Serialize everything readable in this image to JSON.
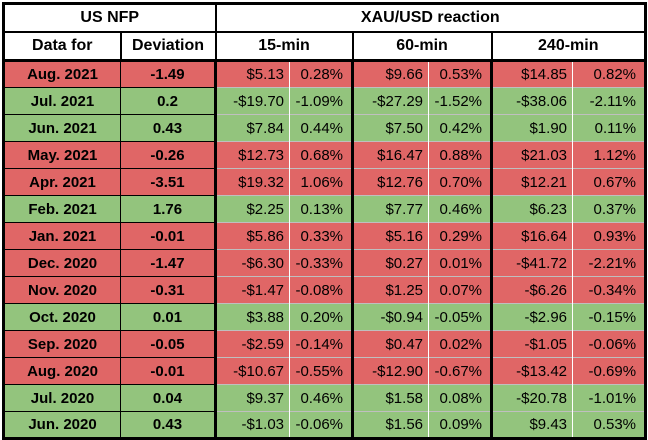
{
  "chart_data": {
    "type": "table",
    "header": {
      "us_nfp": "US NFP",
      "xau_reaction": "XAU/USD reaction",
      "data_for": "Data for",
      "deviation": "Deviation",
      "timeframes": [
        "15-min",
        "60-min",
        "240-min"
      ]
    },
    "rows": [
      {
        "month": "Aug. 2021",
        "deviation": "-1.49",
        "tone": "red",
        "reaction_15min": {
          "price": "$5.13",
          "pct": "0.28%"
        },
        "reaction_60min": {
          "price": "$9.66",
          "pct": "0.53%"
        },
        "reaction_240min": {
          "price": "$14.85",
          "pct": "0.82%"
        }
      },
      {
        "month": "Jul. 2021",
        "deviation": "0.2",
        "tone": "green",
        "reaction_15min": {
          "price": "-$19.70",
          "pct": "-1.09%"
        },
        "reaction_60min": {
          "price": "-$27.29",
          "pct": "-1.52%"
        },
        "reaction_240min": {
          "price": "-$38.06",
          "pct": "-2.11%"
        }
      },
      {
        "month": "Jun. 2021",
        "deviation": "0.43",
        "tone": "green",
        "reaction_15min": {
          "price": "$7.84",
          "pct": "0.44%"
        },
        "reaction_60min": {
          "price": "$7.50",
          "pct": "0.42%"
        },
        "reaction_240min": {
          "price": "$1.90",
          "pct": "0.11%"
        }
      },
      {
        "month": "May. 2021",
        "deviation": "-0.26",
        "tone": "red",
        "reaction_15min": {
          "price": "$12.73",
          "pct": "0.68%"
        },
        "reaction_60min": {
          "price": "$16.47",
          "pct": "0.88%"
        },
        "reaction_240min": {
          "price": "$21.03",
          "pct": "1.12%"
        }
      },
      {
        "month": "Apr. 2021",
        "deviation": "-3.51",
        "tone": "red",
        "reaction_15min": {
          "price": "$19.32",
          "pct": "1.06%"
        },
        "reaction_60min": {
          "price": "$12.76",
          "pct": "0.70%"
        },
        "reaction_240min": {
          "price": "$12.21",
          "pct": "0.67%"
        }
      },
      {
        "month": "Feb. 2021",
        "deviation": "1.76",
        "tone": "green",
        "reaction_15min": {
          "price": "$2.25",
          "pct": "0.13%"
        },
        "reaction_60min": {
          "price": "$7.77",
          "pct": "0.46%"
        },
        "reaction_240min": {
          "price": "$6.23",
          "pct": "0.37%"
        }
      },
      {
        "month": "Jan. 2021",
        "deviation": "-0.01",
        "tone": "red",
        "reaction_15min": {
          "price": "$5.86",
          "pct": "0.33%"
        },
        "reaction_60min": {
          "price": "$5.16",
          "pct": "0.29%"
        },
        "reaction_240min": {
          "price": "$16.64",
          "pct": "0.93%"
        }
      },
      {
        "month": "Dec. 2020",
        "deviation": "-1.47",
        "tone": "red",
        "reaction_15min": {
          "price": "-$6.30",
          "pct": "-0.33%"
        },
        "reaction_60min": {
          "price": "$0.27",
          "pct": "0.01%"
        },
        "reaction_240min": {
          "price": "-$41.72",
          "pct": "-2.21%"
        }
      },
      {
        "month": "Nov. 2020",
        "deviation": "-0.31",
        "tone": "red",
        "reaction_15min": {
          "price": "-$1.47",
          "pct": "-0.08%"
        },
        "reaction_60min": {
          "price": "$1.25",
          "pct": "0.07%"
        },
        "reaction_240min": {
          "price": "-$6.26",
          "pct": "-0.34%"
        }
      },
      {
        "month": "Oct. 2020",
        "deviation": "0.01",
        "tone": "green",
        "reaction_15min": {
          "price": "$3.88",
          "pct": "0.20%"
        },
        "reaction_60min": {
          "price": "-$0.94",
          "pct": "-0.05%"
        },
        "reaction_240min": {
          "price": "-$2.96",
          "pct": "-0.15%"
        }
      },
      {
        "month": "Sep. 2020",
        "deviation": "-0.05",
        "tone": "red",
        "reaction_15min": {
          "price": "-$2.59",
          "pct": "-0.14%"
        },
        "reaction_60min": {
          "price": "$0.47",
          "pct": "0.02%"
        },
        "reaction_240min": {
          "price": "-$1.05",
          "pct": "-0.06%"
        }
      },
      {
        "month": "Aug. 2020",
        "deviation": "-0.01",
        "tone": "red",
        "reaction_15min": {
          "price": "-$10.67",
          "pct": "-0.55%"
        },
        "reaction_60min": {
          "price": "-$12.90",
          "pct": "-0.67%"
        },
        "reaction_240min": {
          "price": "-$13.42",
          "pct": "-0.69%"
        }
      },
      {
        "month": "Jul. 2020",
        "deviation": "0.04",
        "tone": "green",
        "reaction_15min": {
          "price": "$9.37",
          "pct": "0.46%"
        },
        "reaction_60min": {
          "price": "$1.58",
          "pct": "0.08%"
        },
        "reaction_240min": {
          "price": "-$20.78",
          "pct": "-1.01%"
        }
      },
      {
        "month": "Jun. 2020",
        "deviation": "0.43",
        "tone": "green",
        "reaction_15min": {
          "price": "-$1.03",
          "pct": "-0.06%"
        },
        "reaction_60min": {
          "price": "$1.56",
          "pct": "0.09%"
        },
        "reaction_240min": {
          "price": "$9.43",
          "pct": "0.53%"
        }
      }
    ]
  },
  "colors": {
    "red_row": "#e06666",
    "green_row": "#93c47d",
    "border": "#000000",
    "header_bg": "#ffffff",
    "text": "#000000"
  }
}
